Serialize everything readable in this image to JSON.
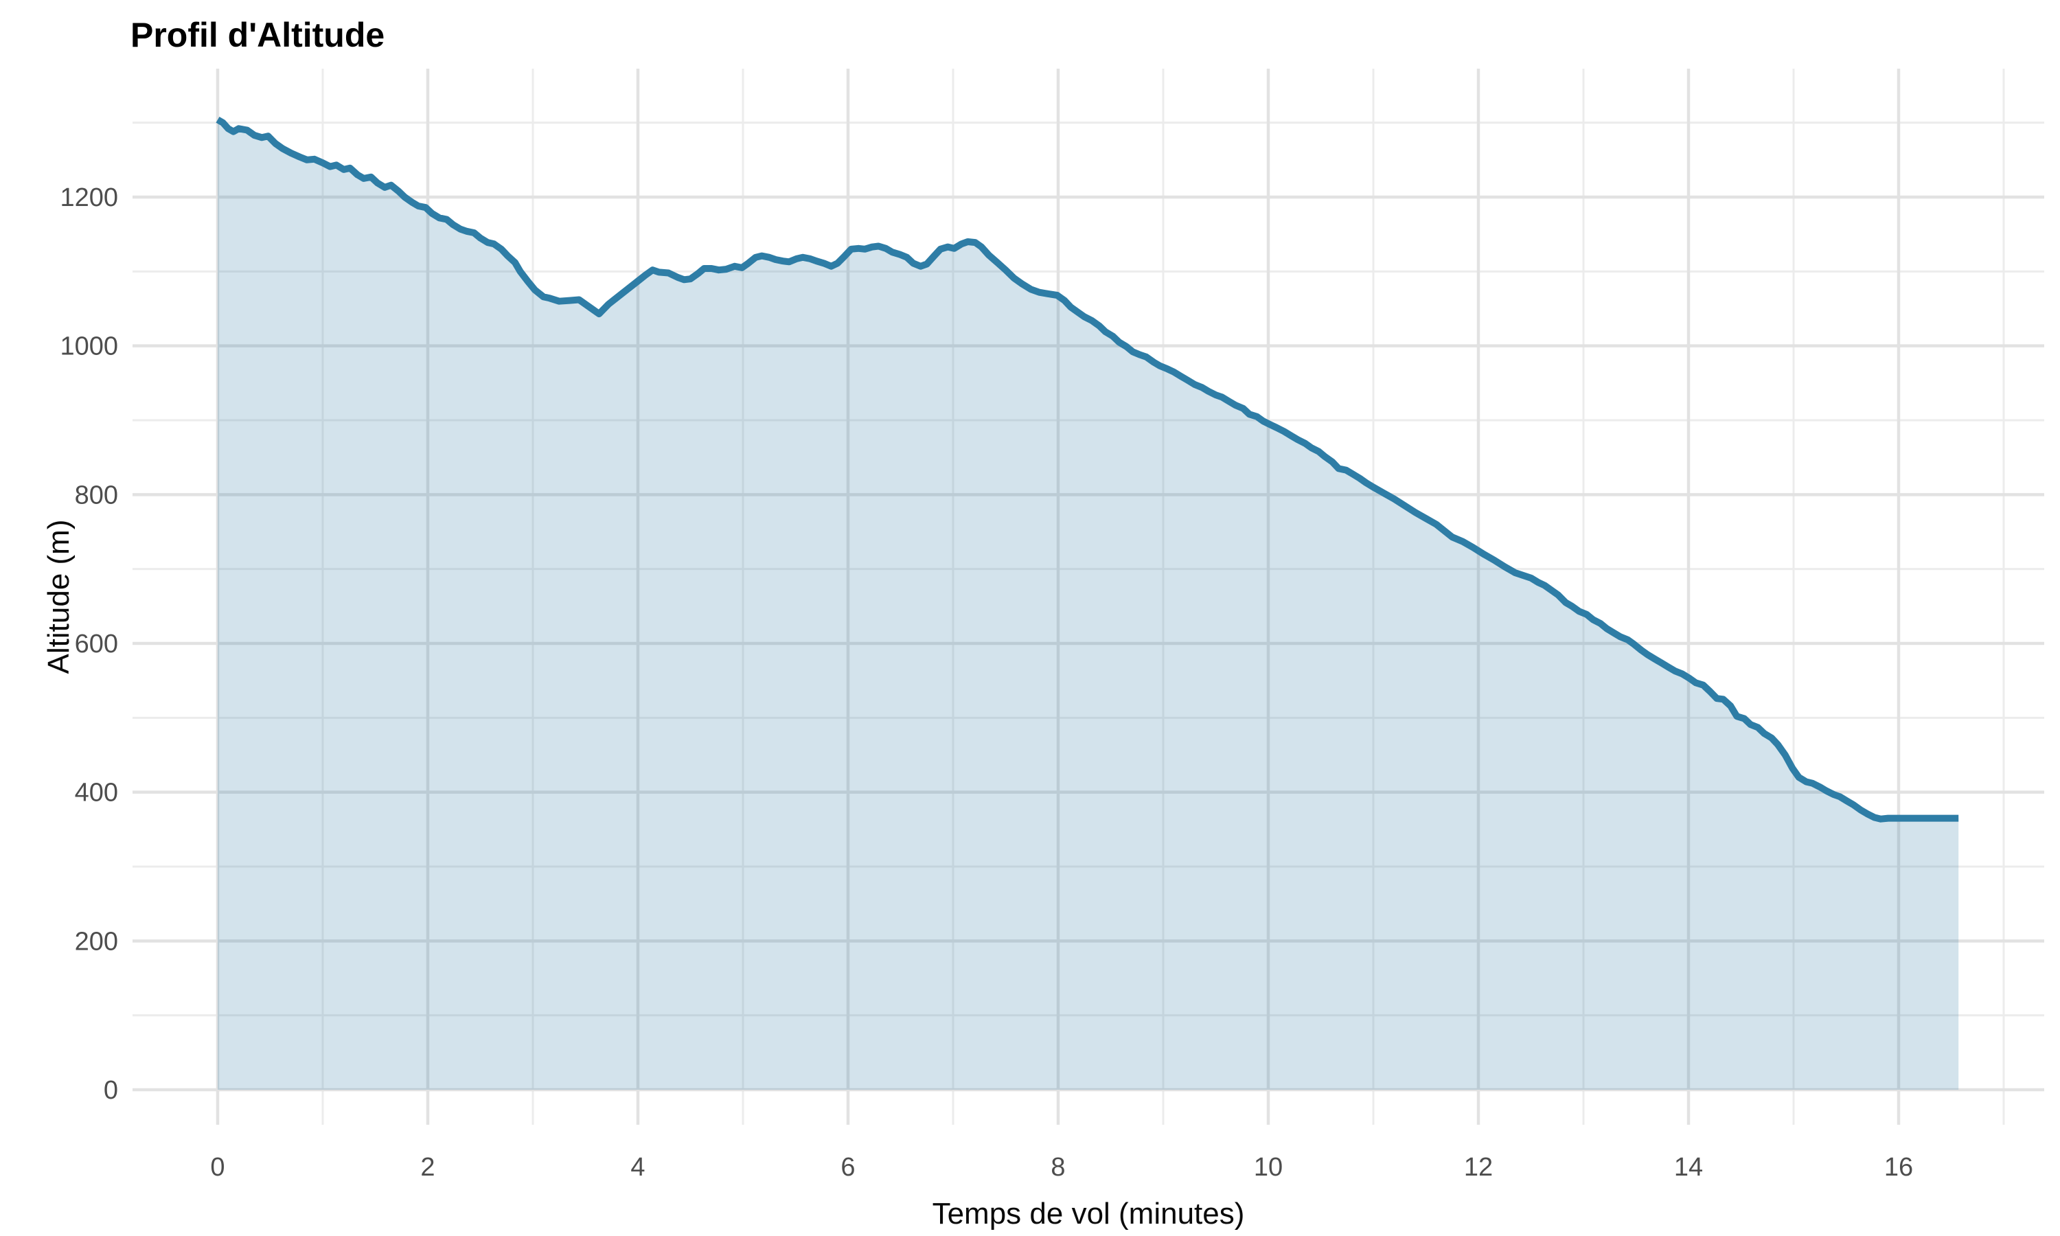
{
  "page": {
    "background": "#ffffff"
  },
  "chart_data": {
    "type": "area",
    "title": "Profil d'Altitude",
    "xlabel": "Temps de vol (minutes)",
    "ylabel": "Altitude (m)",
    "legend": false,
    "grid": {
      "major_x": [
        0,
        2,
        4,
        6,
        8,
        10,
        12,
        14,
        16
      ],
      "minor_x": [
        1,
        3,
        5,
        7,
        9,
        11,
        13,
        15,
        17
      ],
      "major_y": [
        0,
        200,
        400,
        600,
        800,
        1000,
        1200
      ],
      "minor_y": [
        100,
        300,
        500,
        700,
        900,
        1100,
        1300
      ]
    },
    "x_tick_labels": [
      "0",
      "2",
      "4",
      "6",
      "8",
      "10",
      "12",
      "14",
      "16"
    ],
    "y_tick_labels": [
      "0",
      "200",
      "400",
      "600",
      "800",
      "1000",
      "1200"
    ],
    "xlim": [
      -0.83,
      17.39
    ],
    "ylim": [
      -47,
      1372
    ],
    "colors": {
      "line": "#2e7da6",
      "fill": "rgba(46,125,166,0.21)",
      "grid_major": "#e2e2e2",
      "grid_minor": "#ececec",
      "tick_text": "#4d4d4d",
      "title_text": "#000000"
    },
    "series": [
      {
        "name": "altitude",
        "points": [
          [
            0.0,
            1304
          ],
          [
            0.05,
            1300
          ],
          [
            0.1,
            1292
          ],
          [
            0.15,
            1288
          ],
          [
            0.2,
            1292
          ],
          [
            0.28,
            1290
          ],
          [
            0.35,
            1283
          ],
          [
            0.42,
            1280
          ],
          [
            0.48,
            1282
          ],
          [
            0.55,
            1272
          ],
          [
            0.62,
            1265
          ],
          [
            0.7,
            1259
          ],
          [
            0.78,
            1254
          ],
          [
            0.85,
            1250
          ],
          [
            0.92,
            1251
          ],
          [
            1.0,
            1246
          ],
          [
            1.07,
            1241
          ],
          [
            1.13,
            1243
          ],
          [
            1.2,
            1237
          ],
          [
            1.26,
            1239
          ],
          [
            1.33,
            1230
          ],
          [
            1.39,
            1225
          ],
          [
            1.46,
            1227
          ],
          [
            1.52,
            1219
          ],
          [
            1.59,
            1213
          ],
          [
            1.65,
            1216
          ],
          [
            1.72,
            1208
          ],
          [
            1.78,
            1200
          ],
          [
            1.85,
            1193
          ],
          [
            1.91,
            1188
          ],
          [
            1.98,
            1186
          ],
          [
            2.04,
            1178
          ],
          [
            2.11,
            1172
          ],
          [
            2.18,
            1170
          ],
          [
            2.24,
            1163
          ],
          [
            2.31,
            1157
          ],
          [
            2.37,
            1154
          ],
          [
            2.44,
            1152
          ],
          [
            2.5,
            1145
          ],
          [
            2.57,
            1139
          ],
          [
            2.63,
            1137
          ],
          [
            2.7,
            1130
          ],
          [
            2.76,
            1121
          ],
          [
            2.83,
            1112
          ],
          [
            2.88,
            1100
          ],
          [
            2.95,
            1087
          ],
          [
            3.02,
            1075
          ],
          [
            3.1,
            1066
          ],
          [
            3.16,
            1064
          ],
          [
            3.25,
            1060
          ],
          [
            3.35,
            1061
          ],
          [
            3.44,
            1062
          ],
          [
            3.5,
            1056
          ],
          [
            3.56,
            1050
          ],
          [
            3.63,
            1043
          ],
          [
            3.72,
            1056
          ],
          [
            3.81,
            1066
          ],
          [
            3.9,
            1076
          ],
          [
            3.99,
            1086
          ],
          [
            4.07,
            1095
          ],
          [
            4.14,
            1102
          ],
          [
            4.2,
            1099
          ],
          [
            4.29,
            1098
          ],
          [
            4.38,
            1092
          ],
          [
            4.44,
            1089
          ],
          [
            4.5,
            1090
          ],
          [
            4.57,
            1097
          ],
          [
            4.63,
            1104
          ],
          [
            4.7,
            1104
          ],
          [
            4.77,
            1102
          ],
          [
            4.84,
            1103
          ],
          [
            4.92,
            1107
          ],
          [
            4.99,
            1105
          ],
          [
            5.05,
            1111
          ],
          [
            5.12,
            1119
          ],
          [
            5.18,
            1121
          ],
          [
            5.25,
            1119
          ],
          [
            5.31,
            1116
          ],
          [
            5.38,
            1114
          ],
          [
            5.44,
            1113
          ],
          [
            5.51,
            1117
          ],
          [
            5.57,
            1119
          ],
          [
            5.64,
            1117
          ],
          [
            5.7,
            1114
          ],
          [
            5.77,
            1111
          ],
          [
            5.84,
            1107
          ],
          [
            5.9,
            1111
          ],
          [
            5.97,
            1121
          ],
          [
            6.03,
            1130
          ],
          [
            6.1,
            1131
          ],
          [
            6.16,
            1130
          ],
          [
            6.23,
            1133
          ],
          [
            6.29,
            1134
          ],
          [
            6.36,
            1131
          ],
          [
            6.42,
            1126
          ],
          [
            6.49,
            1123
          ],
          [
            6.56,
            1119
          ],
          [
            6.62,
            1111
          ],
          [
            6.69,
            1107
          ],
          [
            6.75,
            1110
          ],
          [
            6.82,
            1121
          ],
          [
            6.88,
            1130
          ],
          [
            6.95,
            1133
          ],
          [
            7.01,
            1131
          ],
          [
            7.08,
            1137
          ],
          [
            7.14,
            1140
          ],
          [
            7.21,
            1139
          ],
          [
            7.27,
            1133
          ],
          [
            7.34,
            1122
          ],
          [
            7.42,
            1112
          ],
          [
            7.5,
            1102
          ],
          [
            7.58,
            1091
          ],
          [
            7.66,
            1083
          ],
          [
            7.74,
            1076
          ],
          [
            7.82,
            1072
          ],
          [
            7.9,
            1070
          ],
          [
            7.99,
            1068
          ],
          [
            8.06,
            1061
          ],
          [
            8.12,
            1052
          ],
          [
            8.19,
            1045
          ],
          [
            8.25,
            1039
          ],
          [
            8.32,
            1034
          ],
          [
            8.39,
            1027
          ],
          [
            8.45,
            1019
          ],
          [
            8.52,
            1013
          ],
          [
            8.58,
            1005
          ],
          [
            8.65,
            999
          ],
          [
            8.71,
            992
          ],
          [
            8.78,
            988
          ],
          [
            8.84,
            985
          ],
          [
            8.91,
            978
          ],
          [
            8.97,
            973
          ],
          [
            9.04,
            969
          ],
          [
            9.1,
            965
          ],
          [
            9.17,
            959
          ],
          [
            9.23,
            954
          ],
          [
            9.3,
            948
          ],
          [
            9.37,
            944
          ],
          [
            9.43,
            939
          ],
          [
            9.5,
            934
          ],
          [
            9.56,
            931
          ],
          [
            9.63,
            925
          ],
          [
            9.69,
            920
          ],
          [
            9.76,
            916
          ],
          [
            9.82,
            908
          ],
          [
            9.89,
            905
          ],
          [
            9.95,
            899
          ],
          [
            10.02,
            894
          ],
          [
            10.08,
            890
          ],
          [
            10.15,
            885
          ],
          [
            10.22,
            879
          ],
          [
            10.28,
            874
          ],
          [
            10.35,
            869
          ],
          [
            10.41,
            863
          ],
          [
            10.48,
            858
          ],
          [
            10.54,
            851
          ],
          [
            10.61,
            844
          ],
          [
            10.67,
            835
          ],
          [
            10.74,
            833
          ],
          [
            10.8,
            828
          ],
          [
            10.87,
            822
          ],
          [
            10.93,
            816
          ],
          [
            11.0,
            810
          ],
          [
            11.1,
            802
          ],
          [
            11.2,
            794
          ],
          [
            11.3,
            785
          ],
          [
            11.4,
            776
          ],
          [
            11.5,
            768
          ],
          [
            11.6,
            760
          ],
          [
            11.75,
            743
          ],
          [
            11.85,
            737
          ],
          [
            11.95,
            729
          ],
          [
            12.05,
            720
          ],
          [
            12.15,
            712
          ],
          [
            12.25,
            703
          ],
          [
            12.35,
            695
          ],
          [
            12.5,
            688
          ],
          [
            12.57,
            682
          ],
          [
            12.63,
            678
          ],
          [
            12.7,
            671
          ],
          [
            12.76,
            665
          ],
          [
            12.83,
            655
          ],
          [
            12.89,
            650
          ],
          [
            12.96,
            643
          ],
          [
            13.03,
            639
          ],
          [
            13.09,
            632
          ],
          [
            13.16,
            627
          ],
          [
            13.22,
            620
          ],
          [
            13.29,
            614
          ],
          [
            13.35,
            609
          ],
          [
            13.42,
            605
          ],
          [
            13.48,
            599
          ],
          [
            13.55,
            591
          ],
          [
            13.61,
            585
          ],
          [
            13.68,
            579
          ],
          [
            13.74,
            574
          ],
          [
            13.81,
            568
          ],
          [
            13.87,
            563
          ],
          [
            13.94,
            559
          ],
          [
            14.01,
            553
          ],
          [
            14.07,
            547
          ],
          [
            14.14,
            544
          ],
          [
            14.2,
            536
          ],
          [
            14.27,
            526
          ],
          [
            14.33,
            525
          ],
          [
            14.4,
            516
          ],
          [
            14.46,
            502
          ],
          [
            14.53,
            499
          ],
          [
            14.59,
            491
          ],
          [
            14.66,
            487
          ],
          [
            14.72,
            479
          ],
          [
            14.79,
            473
          ],
          [
            14.85,
            464
          ],
          [
            14.92,
            450
          ],
          [
            14.99,
            432
          ],
          [
            15.05,
            420
          ],
          [
            15.12,
            414
          ],
          [
            15.18,
            412
          ],
          [
            15.25,
            407
          ],
          [
            15.31,
            402
          ],
          [
            15.38,
            397
          ],
          [
            15.44,
            394
          ],
          [
            15.51,
            388
          ],
          [
            15.57,
            383
          ],
          [
            15.64,
            376
          ],
          [
            15.7,
            371
          ],
          [
            15.77,
            366
          ],
          [
            15.83,
            364
          ],
          [
            15.9,
            365
          ],
          [
            16.0,
            365
          ],
          [
            16.1,
            365
          ],
          [
            16.2,
            365
          ],
          [
            16.3,
            365
          ],
          [
            16.4,
            365
          ],
          [
            16.5,
            365
          ],
          [
            16.57,
            365
          ]
        ]
      }
    ]
  }
}
